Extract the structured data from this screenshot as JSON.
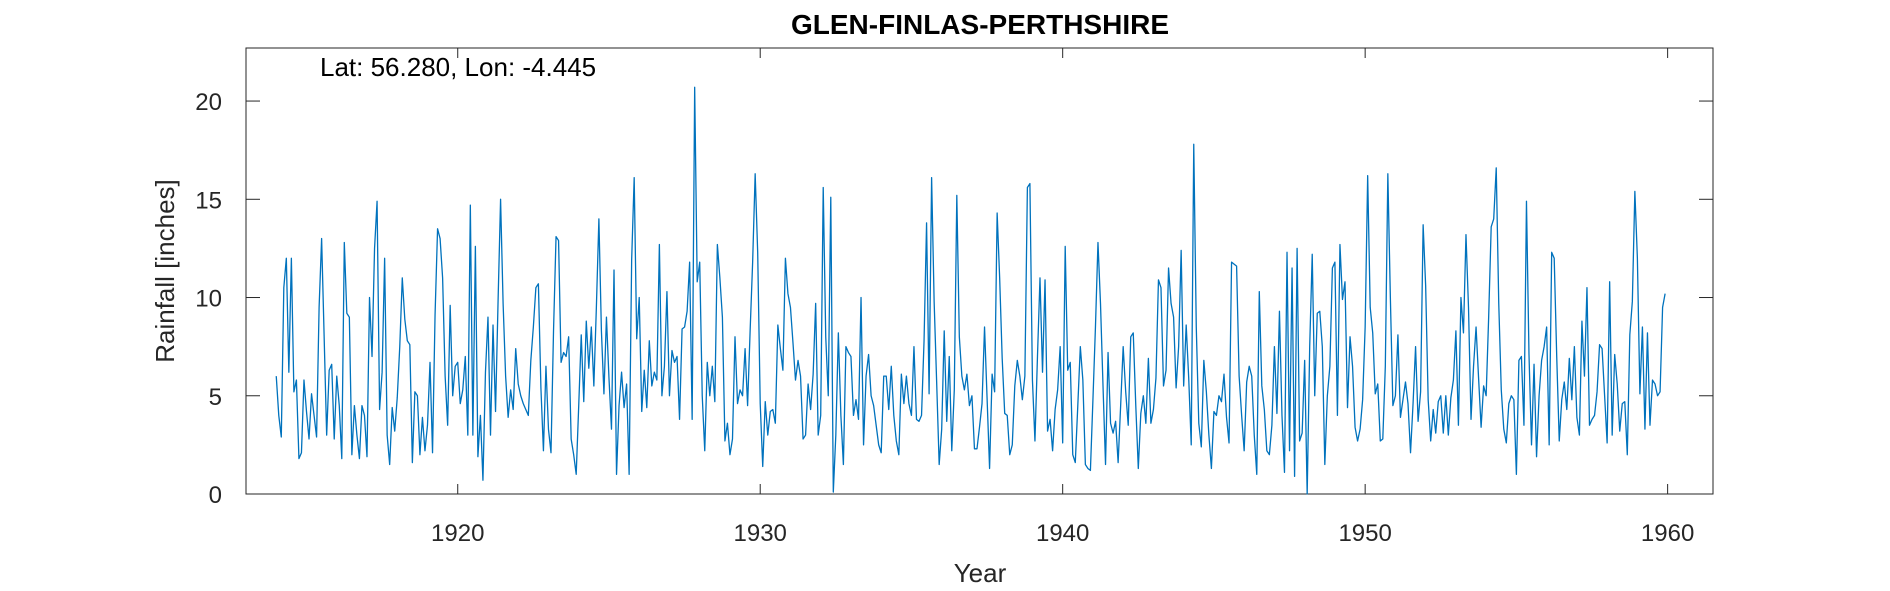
{
  "chart_data": {
    "type": "line",
    "title": "GLEN-FINLAS-PERTHSHIRE",
    "annotation": "Lat: 56.280, Lon: -4.445",
    "xlabel": "Year",
    "ylabel": "Rainfall [inches]",
    "xlim": [
      1913,
      1961.5
    ],
    "ylim": [
      0,
      22.7
    ],
    "xticks": [
      1920,
      1930,
      1940,
      1950,
      1960
    ],
    "yticks": [
      0,
      5,
      10,
      15,
      20
    ],
    "grid": false,
    "line_color": "#0072BD",
    "series": [
      {
        "x_start": 1914.0,
        "step": 0.0833333,
        "values": [
          6.0,
          4.0,
          2.9,
          10.5,
          12.0,
          6.2,
          12.0,
          5.2,
          5.8,
          1.8,
          2.1,
          5.8,
          4.2,
          2.8,
          5.1,
          4.0,
          2.9,
          9.5,
          13.0,
          8.0,
          3.0,
          6.3,
          6.6,
          2.8,
          6.0,
          4.5,
          1.8,
          12.8,
          9.2,
          9.0,
          2.0,
          4.5,
          3.0,
          1.8,
          4.5,
          4.0,
          1.9,
          10.0,
          7.0,
          12.5,
          14.9,
          4.3,
          6.2,
          12.0,
          3.0,
          1.5,
          4.4,
          3.2,
          4.9,
          7.5,
          11.0,
          8.9,
          7.8,
          7.6,
          1.6,
          5.2,
          5.0,
          2.0,
          3.9,
          2.2,
          3.5,
          6.7,
          2.1,
          9.1,
          13.5,
          13.0,
          11.0,
          6.0,
          3.5,
          9.6,
          5.0,
          6.5,
          6.7,
          4.6,
          5.3,
          7.0,
          3.0,
          14.7,
          3.0,
          12.6,
          1.9,
          4.0,
          0.7,
          6.2,
          9.0,
          3.0,
          8.6,
          4.2,
          9.8,
          15.0,
          9.7,
          6.0,
          3.9,
          5.3,
          4.3,
          7.4,
          5.6,
          5.0,
          4.6,
          4.3,
          4.0,
          6.8,
          8.5,
          10.5,
          10.7,
          5.4,
          2.2,
          6.5,
          3.3,
          2.1,
          8.3,
          13.1,
          12.9,
          6.7,
          7.2,
          7.0,
          8.0,
          2.8,
          2.0,
          1.0,
          4.5,
          8.1,
          4.7,
          8.8,
          6.4,
          8.5,
          5.5,
          9.5,
          14.0,
          8.3,
          5.1,
          9.0,
          5.9,
          3.3,
          11.4,
          1.0,
          4.5,
          6.2,
          4.4,
          5.6,
          1.0,
          11.9,
          16.1,
          7.9,
          10.0,
          4.2,
          6.3,
          4.4,
          7.8,
          5.5,
          6.2,
          5.8,
          12.7,
          5.0,
          6.5,
          10.3,
          5.0,
          7.3,
          6.7,
          7.0,
          3.8,
          8.4,
          8.5,
          9.3,
          11.8,
          3.8,
          20.7,
          10.8,
          11.8,
          5.0,
          2.2,
          6.7,
          5.0,
          6.5,
          4.7,
          12.7,
          11.0,
          9.0,
          2.7,
          3.6,
          2.0,
          2.8,
          8.0,
          4.6,
          5.3,
          5.0,
          7.4,
          4.5,
          8.3,
          11.8,
          16.3,
          12.3,
          4.6,
          1.4,
          4.7,
          3.0,
          4.2,
          4.3,
          3.6,
          8.6,
          7.4,
          6.3,
          12.0,
          10.2,
          9.5,
          7.7,
          5.8,
          6.8,
          6.0,
          2.8,
          3.0,
          5.6,
          4.3,
          6.1,
          9.7,
          3.0,
          4.0,
          15.6,
          8.0,
          5.0,
          15.1,
          0.1,
          3.0,
          8.2,
          4.0,
          1.5,
          7.5,
          7.2,
          7.0,
          4.0,
          4.8,
          3.8,
          10.0,
          2.5,
          6.0,
          7.1,
          5.0,
          4.5,
          3.5,
          2.5,
          2.1,
          6.0,
          6.0,
          4.3,
          6.5,
          4.0,
          2.7,
          2.0,
          6.1,
          4.6,
          6.0,
          4.6,
          4.0,
          7.5,
          3.8,
          3.7,
          4.0,
          7.8,
          13.8,
          5.1,
          16.1,
          9.8,
          5.7,
          1.5,
          3.3,
          8.3,
          3.7,
          7.0,
          2.2,
          5.3,
          15.2,
          8.0,
          6.0,
          5.3,
          6.1,
          4.5,
          5.0,
          2.3,
          2.3,
          3.4,
          4.6,
          8.5,
          4.9,
          1.3,
          6.1,
          5.2,
          14.3,
          11.0,
          6.9,
          4.1,
          4.0,
          2.0,
          2.5,
          5.5,
          6.8,
          6.0,
          4.8,
          6.0,
          15.6,
          15.8,
          5.8,
          2.7,
          7.0,
          11.0,
          6.2,
          10.9,
          3.2,
          3.8,
          2.2,
          4.3,
          5.3,
          7.5,
          2.6,
          12.6,
          6.3,
          6.7,
          2.0,
          1.6,
          4.5,
          7.5,
          5.8,
          1.5,
          1.3,
          1.2,
          4.8,
          8.5,
          12.8,
          9.7,
          5.5,
          1.5,
          7.2,
          3.6,
          3.1,
          3.7,
          1.6,
          4.5,
          7.5,
          5.2,
          3.5,
          8.0,
          8.2,
          4.5,
          1.3,
          4.1,
          5.0,
          3.6,
          6.9,
          3.6,
          4.3,
          5.9,
          10.9,
          10.5,
          5.5,
          6.3,
          11.5,
          9.7,
          9.0,
          5.4,
          7.5,
          12.4,
          5.5,
          8.6,
          5.9,
          2.5,
          17.8,
          8.5,
          3.6,
          2.4,
          6.8,
          5.2,
          3.0,
          1.3,
          4.2,
          4.0,
          5.0,
          4.7,
          6.1,
          3.9,
          2.6,
          11.8,
          11.7,
          11.6,
          6.0,
          4.0,
          2.2,
          5.7,
          6.5,
          6.0,
          3.0,
          1.0,
          10.3,
          5.5,
          4.3,
          2.2,
          2.0,
          3.5,
          7.5,
          4.1,
          9.3,
          4.0,
          1.1,
          12.3,
          2.2,
          11.5,
          0.9,
          12.5,
          2.7,
          3.1,
          6.8,
          0.0,
          7.5,
          12.2,
          5.0,
          9.2,
          9.3,
          7.5,
          1.5,
          5.0,
          6.5,
          11.5,
          11.8,
          4.0,
          12.7,
          9.9,
          10.8,
          4.4,
          8.0,
          6.5,
          3.4,
          2.7,
          3.3,
          4.8,
          8.5,
          16.2,
          9.5,
          8.2,
          5.1,
          5.6,
          2.7,
          2.8,
          6.5,
          16.3,
          10.0,
          4.5,
          5.0,
          8.1,
          3.9,
          4.8,
          5.7,
          4.6,
          2.1,
          4.6,
          7.5,
          3.7,
          5.2,
          13.7,
          10.6,
          4.8,
          2.7,
          4.3,
          3.1,
          4.7,
          5.0,
          3.1,
          5.0,
          3.0,
          4.9,
          5.8,
          8.3,
          3.5,
          10.0,
          8.2,
          13.2,
          9.5,
          3.8,
          6.5,
          8.5,
          5.9,
          3.4,
          5.5,
          5.0,
          9.0,
          13.6,
          14.0,
          16.6,
          9.7,
          5.3,
          3.3,
          2.6,
          4.6,
          5.0,
          4.8,
          1.0,
          6.8,
          7.0,
          3.5,
          14.9,
          7.1,
          2.5,
          6.6,
          1.9,
          5.0,
          6.8,
          7.5,
          8.5,
          2.5,
          12.3,
          12.0,
          7.0,
          2.7,
          4.8,
          5.7,
          4.3,
          6.9,
          4.8,
          7.5,
          3.9,
          3.0,
          8.8,
          6.0,
          10.5,
          3.5,
          3.8,
          4.0,
          5.2,
          7.6,
          7.4,
          5.0,
          2.6,
          10.8,
          3.0,
          7.1,
          5.6,
          3.2,
          4.6,
          4.7,
          2.0,
          8.1,
          9.8,
          15.4,
          12.0,
          5.1,
          8.5,
          3.3,
          8.2,
          3.5,
          5.8,
          5.6,
          5.0,
          5.2,
          9.5,
          10.2
        ]
      }
    ]
  }
}
